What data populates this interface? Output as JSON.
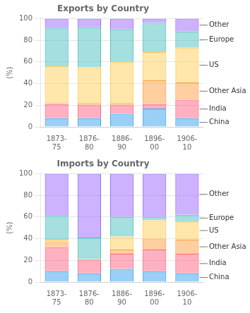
{
  "chart_data": [
    {
      "type": "bar",
      "stacked": true,
      "title": "Exports by Country",
      "y_label": "(%)",
      "categories": [
        "1873-\n75",
        "1876-\n80",
        "1886-\n90",
        "1896-\n00",
        "1906-\n10"
      ],
      "series": [
        {
          "name": "China",
          "values": [
            8,
            8,
            12,
            17,
            8
          ]
        },
        {
          "name": "India",
          "values": [
            13,
            12,
            8,
            4,
            17
          ]
        },
        {
          "name": "Other Asia",
          "values": [
            1,
            2,
            2,
            22,
            16
          ]
        },
        {
          "name": "US",
          "values": [
            34,
            33,
            38,
            26,
            32
          ]
        },
        {
          "name": "Europe",
          "values": [
            35,
            37,
            30,
            27,
            15
          ]
        },
        {
          "name": "Other",
          "values": [
            9,
            8,
            10,
            4,
            12
          ]
        }
      ],
      "ylim": [
        0,
        100
      ],
      "yticks": [
        0,
        20,
        40,
        60,
        80,
        100
      ],
      "grid": true,
      "annotations": [
        {
          "text": "Other",
          "series": "Other"
        },
        {
          "text": "Europe",
          "series": "Europe"
        },
        {
          "text": "US",
          "series": "US"
        },
        {
          "text": "Other Asia",
          "series": "Other Asia"
        },
        {
          "text": "India",
          "series": "India"
        },
        {
          "text": "China",
          "series": "China"
        }
      ]
    },
    {
      "type": "bar",
      "stacked": true,
      "title": "Imports by Country",
      "y_label": "(%)",
      "categories": [
        "1873-\n75",
        "1876-\n80",
        "1886-\n90",
        "1896-\n00",
        "1906-\n10"
      ],
      "series": [
        {
          "name": "China",
          "values": [
            10,
            8,
            12,
            10,
            8
          ]
        },
        {
          "name": "India",
          "values": [
            22,
            12,
            14,
            20,
            18
          ]
        },
        {
          "name": "Other Asia",
          "values": [
            5,
            1,
            4,
            10,
            13
          ]
        },
        {
          "name": "US",
          "values": [
            2,
            0,
            12,
            17,
            17
          ]
        },
        {
          "name": "Europe",
          "values": [
            22,
            20,
            18,
            3,
            6
          ]
        },
        {
          "name": "Other",
          "values": [
            39,
            59,
            40,
            40,
            38
          ]
        }
      ],
      "ylim": [
        0,
        100
      ],
      "yticks": [
        0,
        20,
        40,
        60,
        80,
        100
      ],
      "grid": true,
      "annotations": [
        {
          "text": "Other",
          "series": "Other"
        },
        {
          "text": "Europe",
          "series": "Europe"
        },
        {
          "text": "US",
          "series": "US"
        },
        {
          "text": "Other Asia",
          "series": "Other Asia"
        },
        {
          "text": "India",
          "series": "India"
        },
        {
          "text": "China",
          "series": "China"
        }
      ]
    }
  ]
}
